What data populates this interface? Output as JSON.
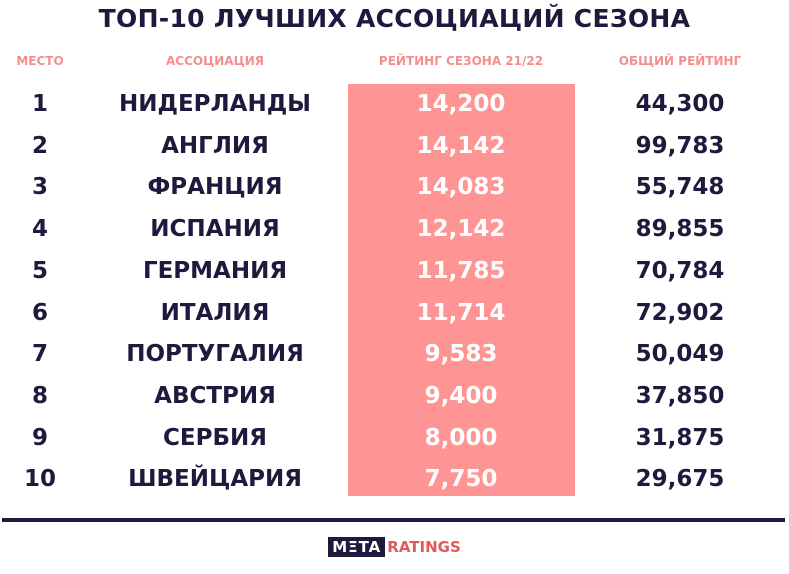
{
  "header": {
    "title": "ТОП-10 ЛУЧШИХ АССОЦИАЦИЙ СЕЗОНА"
  },
  "table": {
    "columns": [
      "МЕСТО",
      "АССОЦИАЦИЯ",
      "РЕЙТИНГ СЕЗОНА 21/22",
      "ОБЩИЙ РЕЙТИНГ"
    ],
    "rows": [
      [
        "1",
        "НИДЕРЛАНДЫ",
        "14,200",
        "44,300"
      ],
      [
        "2",
        "АНГЛИЯ",
        "14,142",
        "99,783"
      ],
      [
        "3",
        "ФРАНЦИЯ",
        "14,083",
        "55,748"
      ],
      [
        "4",
        "ИСПАНИЯ",
        "12,142",
        "89,855"
      ],
      [
        "5",
        "ГЕРМАНИЯ",
        "11,785",
        "70,784"
      ],
      [
        "6",
        "ИТАЛИЯ",
        "11,714",
        "72,902"
      ],
      [
        "7",
        "ПОРТУГАЛИЯ",
        "9,583",
        "50,049"
      ],
      [
        "8",
        "АВСТРИЯ",
        "9,400",
        "37,850"
      ],
      [
        "9",
        "СЕРБИЯ",
        "8,000",
        "31,875"
      ],
      [
        "10",
        "ШВЕЙЦАРИЯ",
        "7,750",
        "29,675"
      ]
    ]
  },
  "footer": {
    "logo_box": "MΞTA",
    "logo_text": "RATINGS"
  }
}
